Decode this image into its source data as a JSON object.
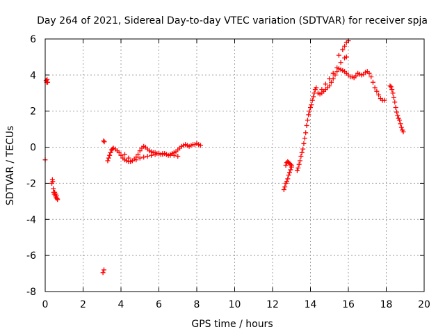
{
  "chart_data": {
    "type": "scatter",
    "title": "Day 264 of 2021, Sidereal Day-to-day VTEC variation (SDTVAR) for receiver spja",
    "xlabel": "GPS time / hours",
    "ylabel": "SDTVAR / TECUs",
    "xlim": [
      0,
      20
    ],
    "ylim": [
      -8,
      6
    ],
    "xticks": [
      0,
      2,
      4,
      6,
      8,
      10,
      12,
      14,
      16,
      18,
      20
    ],
    "yticks": [
      -8,
      -6,
      -4,
      -2,
      0,
      2,
      4,
      6
    ],
    "grid": true,
    "marker": "+",
    "color": "#ff0000",
    "series": [
      {
        "name": "SDTVAR",
        "x": [
          0.0,
          0.05,
          0.08,
          0.1,
          0.13,
          0.35,
          0.38,
          0.4,
          0.43,
          0.45,
          0.48,
          0.5,
          0.53,
          0.55,
          0.58,
          0.6,
          0.63,
          0.65,
          3.05,
          3.1,
          3.08,
          3.12,
          3.3,
          3.35,
          3.4,
          3.45,
          3.5,
          3.55,
          3.6,
          3.7,
          3.8,
          3.9,
          4.0,
          4.1,
          4.2,
          4.3,
          4.4,
          4.5,
          4.6,
          4.7,
          4.8,
          4.9,
          5.0,
          5.1,
          5.2,
          5.3,
          5.4,
          5.5,
          5.6,
          5.7,
          5.8,
          5.9,
          6.0,
          6.1,
          6.2,
          6.3,
          6.4,
          6.5,
          6.6,
          6.7,
          6.8,
          6.9,
          7.0,
          7.1,
          7.2,
          7.3,
          7.4,
          7.5,
          7.6,
          7.7,
          7.8,
          7.9,
          8.0,
          8.1,
          8.2,
          4.2,
          4.4,
          4.6,
          4.8,
          5.0,
          5.2,
          5.4,
          5.6,
          5.8,
          6.0,
          6.2,
          6.4,
          6.6,
          6.8,
          7.0,
          12.6,
          12.65,
          12.7,
          12.75,
          12.8,
          12.85,
          12.9,
          12.95,
          13.0,
          12.7,
          12.75,
          12.8,
          12.85,
          12.9,
          12.95,
          13.0,
          13.3,
          13.35,
          13.4,
          13.45,
          13.5,
          13.55,
          13.6,
          13.65,
          13.7,
          13.75,
          13.8,
          13.85,
          13.9,
          13.95,
          14.0,
          14.05,
          14.1,
          14.15,
          14.2,
          14.25,
          14.3,
          14.4,
          14.5,
          14.6,
          14.7,
          14.8,
          14.9,
          15.0,
          15.1,
          15.2,
          15.3,
          15.4,
          15.5,
          15.6,
          15.7,
          15.8,
          15.9,
          16.0,
          16.1,
          16.2,
          16.3,
          16.4,
          16.5,
          16.6,
          16.7,
          16.8,
          16.9,
          17.0,
          17.1,
          17.2,
          17.3,
          17.4,
          17.5,
          17.6,
          17.7,
          17.8,
          17.9,
          14.6,
          14.8,
          15.0,
          15.2,
          15.4,
          15.6,
          15.8,
          15.9,
          15.5,
          15.7,
          15.8,
          15.9,
          16.0,
          18.2,
          18.25,
          18.3,
          18.35,
          18.4,
          18.45,
          18.5,
          18.55,
          18.6,
          18.65,
          18.7,
          18.75,
          18.8,
          18.85,
          18.9
        ],
        "y": [
          -0.7,
          3.7,
          3.6,
          3.75,
          3.6,
          -2.0,
          -1.8,
          -1.9,
          -2.3,
          -2.5,
          -2.6,
          -2.5,
          -2.7,
          -2.6,
          -2.8,
          -2.7,
          -2.85,
          -2.9,
          -6.95,
          -6.8,
          0.35,
          0.3,
          -0.75,
          -0.6,
          -0.45,
          -0.3,
          -0.15,
          -0.1,
          -0.05,
          -0.1,
          -0.2,
          -0.3,
          -0.45,
          -0.6,
          -0.7,
          -0.75,
          -0.8,
          -0.8,
          -0.75,
          -0.65,
          -0.55,
          -0.4,
          -0.2,
          -0.05,
          0.05,
          0.0,
          -0.1,
          -0.2,
          -0.25,
          -0.3,
          -0.3,
          -0.35,
          -0.35,
          -0.4,
          -0.4,
          -0.35,
          -0.4,
          -0.45,
          -0.4,
          -0.35,
          -0.3,
          -0.25,
          -0.15,
          -0.05,
          0.05,
          0.1,
          0.15,
          0.1,
          0.05,
          0.1,
          0.15,
          0.15,
          0.2,
          0.15,
          0.1,
          -0.4,
          -0.6,
          -0.75,
          -0.7,
          -0.6,
          -0.55,
          -0.5,
          -0.45,
          -0.4,
          -0.35,
          -0.35,
          -0.4,
          -0.45,
          -0.45,
          -0.5,
          -2.35,
          -2.2,
          -2.0,
          -1.9,
          -1.75,
          -1.55,
          -1.4,
          -1.25,
          -1.1,
          -1.0,
          -0.85,
          -0.8,
          -0.85,
          -0.9,
          -0.95,
          -1.0,
          -1.3,
          -1.15,
          -0.95,
          -0.75,
          -0.5,
          -0.3,
          -0.1,
          0.2,
          0.5,
          0.8,
          1.2,
          1.5,
          1.8,
          2.0,
          2.2,
          2.35,
          2.6,
          2.8,
          3.0,
          3.2,
          3.3,
          3.0,
          2.95,
          3.0,
          3.1,
          3.2,
          3.3,
          3.4,
          3.6,
          3.8,
          4.0,
          4.2,
          4.35,
          4.3,
          4.25,
          4.2,
          4.1,
          4.0,
          3.9,
          3.9,
          3.85,
          3.95,
          4.1,
          4.05,
          4.0,
          4.05,
          4.15,
          4.2,
          4.1,
          3.9,
          3.6,
          3.3,
          3.1,
          2.9,
          2.7,
          2.6,
          2.6,
          3.2,
          3.5,
          3.8,
          4.1,
          4.4,
          4.7,
          4.95,
          5.0,
          5.1,
          5.4,
          5.6,
          5.8,
          5.9,
          3.4,
          3.35,
          3.2,
          3.0,
          2.75,
          2.5,
          2.2,
          1.95,
          1.75,
          1.6,
          1.5,
          1.3,
          1.1,
          0.95,
          0.85
        ]
      }
    ]
  }
}
